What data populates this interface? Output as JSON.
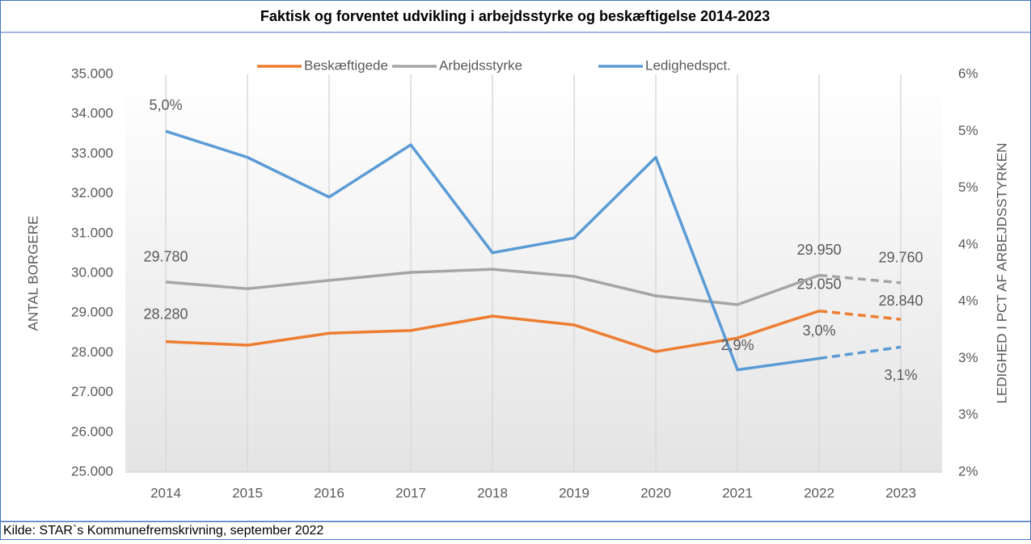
{
  "chart_data": {
    "type": "line",
    "title": "Faktisk og forventet udvikling i arbejdsstyrke og beskæftigelse 2014-2023",
    "source": "Kilde: STAR`s Kommunefremskrivning, september 2022",
    "ylabel": "ANTAL BORGERE",
    "y2label": "LEDIGHED I PCT AF ARBEJDSSTYRKEN",
    "categories": [
      "2014",
      "2015",
      "2016",
      "2017",
      "2018",
      "2019",
      "2020",
      "2021",
      "2022",
      "2023"
    ],
    "dash_start": 8,
    "xgrid": true,
    "legend": "top",
    "ylim": [
      25000,
      35000
    ],
    "yticks": [
      {
        "value": 25000,
        "label": "25.000"
      },
      {
        "value": 26000,
        "label": "26.000"
      },
      {
        "value": 27000,
        "label": "27.000"
      },
      {
        "value": 28000,
        "label": "28.000"
      },
      {
        "value": 29000,
        "label": "29.000"
      },
      {
        "value": 30000,
        "label": "30.000"
      },
      {
        "value": 31000,
        "label": "31.000"
      },
      {
        "value": 32000,
        "label": "32.000"
      },
      {
        "value": 33000,
        "label": "33.000"
      },
      {
        "value": 34000,
        "label": "34.000"
      },
      {
        "value": 35000,
        "label": "35.000"
      }
    ],
    "y2lim": [
      2,
      5.5
    ],
    "y2ticks": [
      {
        "value": 2,
        "label": "2%"
      },
      {
        "value": 2.5,
        "label": "3%"
      },
      {
        "value": 3,
        "label": "3%"
      },
      {
        "value": 3.5,
        "label": "4%"
      },
      {
        "value": 4,
        "label": "4%"
      },
      {
        "value": 4.5,
        "label": "5%"
      },
      {
        "value": 5,
        "label": "5%"
      },
      {
        "value": 5.5,
        "label": "6%"
      }
    ],
    "series": [
      {
        "name": "Beskæftigede",
        "color": "#ed7d31",
        "values": [
          28280,
          28190,
          28490,
          28560,
          28920,
          28700,
          28030,
          28370,
          29050,
          28840
        ],
        "value_labels": [
          "28.280",
          null,
          null,
          null,
          null,
          null,
          null,
          null,
          "29.050",
          "28.840"
        ]
      },
      {
        "name": "Arbejdsstyrke",
        "color": "#a5a5a5",
        "values": [
          29780,
          29610,
          29820,
          30020,
          30100,
          29920,
          29430,
          29210,
          29950,
          29760
        ],
        "value_labels": [
          "29.780",
          null,
          null,
          null,
          null,
          null,
          null,
          null,
          "29.950",
          "29.760"
        ]
      },
      {
        "name": "Ledighedspct.",
        "color": "#5b9bd5",
        "axis": "y2",
        "values": [
          5.0,
          4.77,
          4.42,
          4.88,
          3.93,
          4.06,
          4.77,
          2.9,
          3.0,
          3.1
        ],
        "value_labels": [
          "5,0%",
          null,
          null,
          null,
          null,
          null,
          null,
          "2,9%",
          "3,0%",
          "3,1%"
        ]
      }
    ]
  }
}
